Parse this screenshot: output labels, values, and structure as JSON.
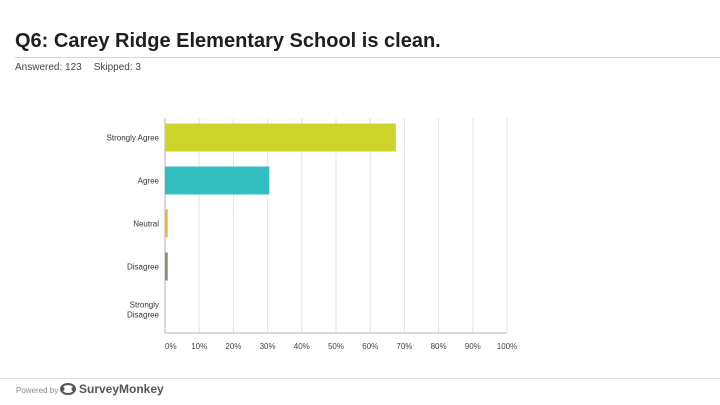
{
  "header": {
    "title": "Q6: Carey Ridge Elementary School is clean.",
    "answered": "Answered: 123",
    "skipped": "Skipped: 3"
  },
  "footer": {
    "powered_by": "Powered by",
    "logo_text": "SurveyMonkey",
    "logo_icon": "surveymonkey-logo-icon"
  },
  "chart_data": {
    "type": "bar",
    "orientation": "horizontal",
    "categories": [
      "Strongly Agree",
      "Agree",
      "Neutral",
      "Disagree",
      "Strongly Disagree"
    ],
    "values": [
      67.5,
      30.5,
      0.8,
      0.8,
      0
    ],
    "colors": [
      "#cdd52a",
      "#33bfc1",
      "#f0b43a",
      "#8b8b7a",
      "#cccccc"
    ],
    "xlim": [
      0,
      100
    ],
    "xticks": [
      "0%",
      "10%",
      "20%",
      "30%",
      "40%",
      "50%",
      "60%",
      "70%",
      "80%",
      "90%",
      "100%"
    ],
    "grid": true,
    "title": "",
    "xlabel": "",
    "ylabel": ""
  }
}
